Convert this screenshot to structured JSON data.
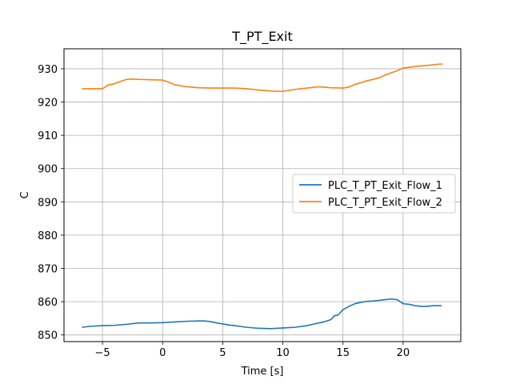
{
  "chart_data": {
    "type": "line",
    "title": "T_PT_Exit",
    "xlabel": "Time [s]",
    "ylabel": "C",
    "xlim": [
      -8.2,
      24.8
    ],
    "ylim": [
      848,
      936
    ],
    "xticks": [
      -5,
      0,
      5,
      10,
      15,
      20
    ],
    "yticks": [
      850,
      860,
      870,
      880,
      890,
      900,
      910,
      920,
      930
    ],
    "xtick_labels": [
      "−5",
      "0",
      "5",
      "10",
      "15",
      "20"
    ],
    "ytick_labels": [
      "850",
      "860",
      "870",
      "880",
      "890",
      "900",
      "910",
      "920",
      "930"
    ],
    "grid": true,
    "legend_position": "center-right",
    "series": [
      {
        "name": "PLC_T_PT_Exit_Flow_1",
        "color": "#1f77b4",
        "x": [
          -6.7,
          -6.0,
          -5.0,
          -4.0,
          -3.0,
          -2.0,
          -1.0,
          0.0,
          1.0,
          2.0,
          3.0,
          3.5,
          4.0,
          4.5,
          5.0,
          5.5,
          6.0,
          7.0,
          8.0,
          9.0,
          10.0,
          11.0,
          12.0,
          12.5,
          13.0,
          13.5,
          14.0,
          14.3,
          14.6,
          15.0,
          15.5,
          16.0,
          16.5,
          17.0,
          17.5,
          18.0,
          18.5,
          19.0,
          19.5,
          20.0,
          20.5,
          21.0,
          21.5,
          22.0,
          22.5,
          23.2
        ],
        "values": [
          852.3,
          852.6,
          852.8,
          852.9,
          853.2,
          853.6,
          853.6,
          853.7,
          853.9,
          854.1,
          854.2,
          854.2,
          854.0,
          853.6,
          853.3,
          853.0,
          852.8,
          852.3,
          852.0,
          851.9,
          852.1,
          852.3,
          852.8,
          853.2,
          853.6,
          854.0,
          854.6,
          855.8,
          856.0,
          857.6,
          858.6,
          859.4,
          859.8,
          860.1,
          860.2,
          860.4,
          860.6,
          860.8,
          860.6,
          859.4,
          859.2,
          858.8,
          858.6,
          858.6,
          858.8,
          858.8
        ]
      },
      {
        "name": "PLC_T_PT_Exit_Flow_2",
        "color": "#ff7f0e",
        "x": [
          -6.7,
          -6.0,
          -5.0,
          -4.5,
          -4.0,
          -3.5,
          -3.0,
          -2.5,
          -2.0,
          -1.0,
          0.0,
          0.5,
          1.0,
          1.5,
          2.0,
          3.0,
          4.0,
          5.0,
          6.0,
          7.0,
          8.0,
          9.0,
          10.0,
          11.0,
          12.0,
          13.0,
          14.0,
          15.0,
          15.5,
          16.0,
          16.5,
          17.0,
          17.5,
          18.0,
          18.5,
          19.0,
          19.5,
          20.0,
          21.0,
          22.0,
          23.0,
          23.3
        ],
        "values": [
          924.0,
          924.0,
          924.0,
          925.2,
          925.5,
          926.2,
          926.8,
          926.9,
          926.8,
          926.7,
          926.6,
          926.0,
          925.2,
          924.9,
          924.6,
          924.3,
          924.2,
          924.2,
          924.2,
          924.0,
          923.6,
          923.3,
          923.2,
          923.8,
          924.2,
          924.6,
          924.3,
          924.2,
          924.5,
          925.3,
          925.8,
          926.4,
          926.8,
          927.3,
          928.1,
          928.8,
          929.4,
          930.2,
          930.7,
          931.0,
          931.4,
          931.4
        ]
      }
    ]
  }
}
